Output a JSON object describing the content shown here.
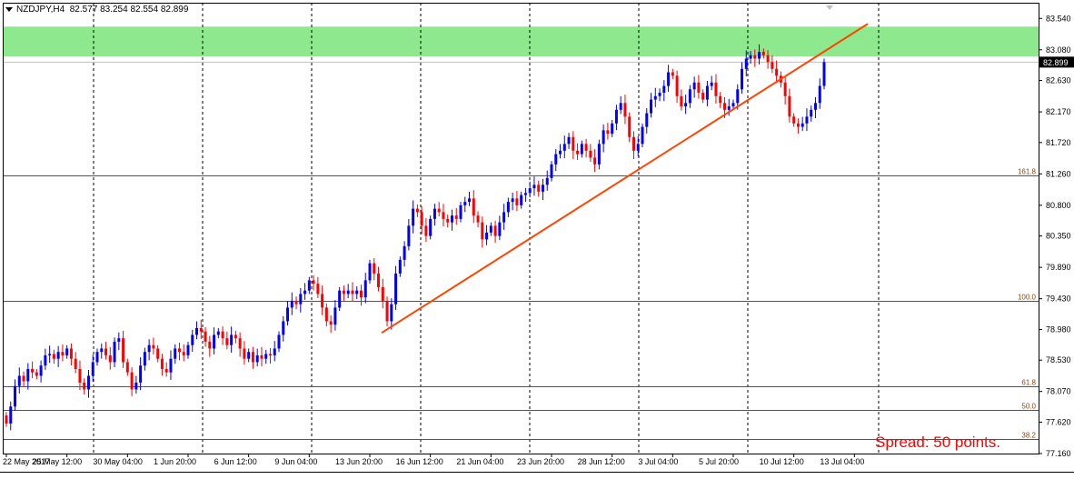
{
  "header": {
    "symbol": "NZDJPY,H4",
    "ohlc": "82.577 83.254 82.554 82.899"
  },
  "spread_text": "Spread: 50 points.",
  "colors": {
    "bull": "#0000ff",
    "bear": "#ff0000",
    "zone": "#8ee88e",
    "trendline": "#ff4500",
    "fibline": "#8b4513",
    "grid": "#000000",
    "price_tag": "#000000"
  },
  "chart_data": {
    "type": "candlestick",
    "symbol": "NZDJPY",
    "timeframe": "H4",
    "ylim": [
      77.16,
      83.77
    ],
    "y_ticks": [
      "83.540",
      "83.080",
      "82.630",
      "82.170",
      "81.720",
      "81.260",
      "80.800",
      "80.350",
      "79.890",
      "79.430",
      "78.980",
      "78.530",
      "78.070",
      "77.620",
      "77.160"
    ],
    "x_ticks": [
      "22 May 2017",
      "25 May 12:00",
      "30 May 04:00",
      "1 Jun 20:00",
      "6 Jun 12:00",
      "9 Jun 04:00",
      "13 Jun 20:00",
      "16 Jun 12:00",
      "21 Jun 04:00",
      "23 Jun 20:00",
      "28 Jun 12:00",
      "3 Jul 04:00",
      "5 Jul 20:00",
      "10 Jul 12:00",
      "13 Jul 04:00"
    ],
    "grid": "vertical-dashed",
    "current_price": "82.899",
    "resistance_zone": {
      "from": 82.98,
      "to": 83.42
    },
    "fib_levels": [
      {
        "label": "161.8",
        "price": 81.24
      },
      {
        "label": "100.0",
        "price": 79.4
      },
      {
        "label": "61.8",
        "price": 78.14
      },
      {
        "label": "50.0",
        "price": 77.8
      },
      {
        "label": "38.2",
        "price": 77.37
      }
    ],
    "trendline": {
      "from": {
        "x": "13 Jun 20:00",
        "price": 78.93
      },
      "to": {
        "x": "13 Jul 12:00",
        "price": 83.46
      }
    },
    "series": [
      {
        "close": [
          77.6,
          77.85,
          78.15,
          78.3,
          78.22,
          78.4,
          78.35,
          78.3,
          78.45,
          78.6,
          78.62,
          78.55,
          78.65,
          78.6,
          78.7,
          78.55,
          78.4,
          78.2,
          78.1,
          78.3,
          78.5,
          78.65,
          78.7,
          78.6,
          78.5,
          78.8,
          78.85,
          78.5,
          78.35,
          78.1,
          78.2,
          78.45,
          78.65,
          78.75,
          78.7,
          78.55,
          78.4,
          78.35,
          78.55,
          78.7,
          78.65,
          78.6,
          78.75,
          78.9,
          79.0,
          78.95,
          78.8,
          78.7,
          78.9,
          78.95,
          78.85,
          78.75,
          78.9,
          78.85,
          78.7,
          78.55,
          78.65,
          78.5,
          78.6,
          78.55,
          78.62,
          78.6,
          78.7,
          78.9,
          79.1,
          79.3,
          79.4,
          79.35,
          79.5,
          79.55,
          79.7,
          79.65,
          79.5,
          79.3,
          79.1,
          79.05,
          79.3,
          79.55,
          79.5,
          79.55,
          79.5,
          79.55,
          79.45,
          79.7,
          79.95,
          79.8,
          79.6,
          79.4,
          79.1,
          79.35,
          79.8,
          80.0,
          80.2,
          80.5,
          80.75,
          80.7,
          80.5,
          80.35,
          80.6,
          80.75,
          80.7,
          80.6,
          80.55,
          80.65,
          80.6,
          80.8,
          80.85,
          80.9,
          80.65,
          80.55,
          80.3,
          80.4,
          80.5,
          80.35,
          80.55,
          80.7,
          80.85,
          80.9,
          80.8,
          80.95,
          80.98,
          81.05,
          81.1,
          81.0,
          81.1,
          81.2,
          81.4,
          81.55,
          81.6,
          81.7,
          81.8,
          81.6,
          81.55,
          81.7,
          81.6,
          81.5,
          81.4,
          81.7,
          81.9,
          81.85,
          82.0,
          82.2,
          82.3,
          82.1,
          81.8,
          81.6,
          81.7,
          81.95,
          82.15,
          82.35,
          82.4,
          82.45,
          82.55,
          82.75,
          82.7,
          82.4,
          82.25,
          82.3,
          82.5,
          82.6,
          82.45,
          82.35,
          82.55,
          82.6,
          82.4,
          82.3,
          82.2,
          82.25,
          82.3,
          82.5,
          82.8,
          82.95,
          83.0,
          82.95,
          83.05,
          83.0,
          82.9,
          82.8,
          82.7,
          82.6,
          82.4,
          82.1,
          82.0,
          81.95,
          82.0,
          82.1,
          82.2,
          82.3,
          82.55,
          82.9
        ]
      }
    ]
  }
}
